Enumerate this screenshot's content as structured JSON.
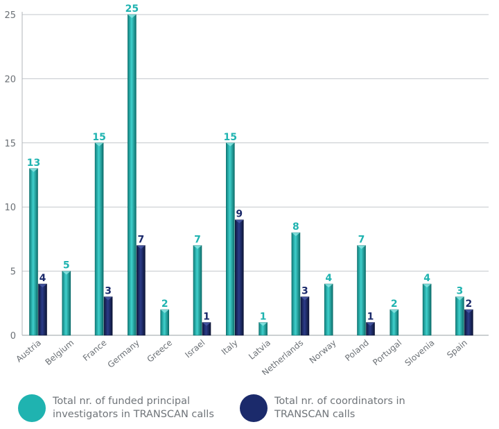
{
  "chart_data": {
    "type": "bar",
    "categories": [
      "Austria",
      "Belgium",
      "France",
      "Germany",
      "Greece",
      "Israel",
      "Italy",
      "Latvia",
      "Netherlands",
      "Norway",
      "Poland",
      "Portugal",
      "Slovenia",
      "Spain"
    ],
    "series": [
      {
        "name": "Total nr. of funded principal investigators in TRANSCAN calls",
        "color": "#1fb3b0",
        "values": [
          13,
          5,
          15,
          25,
          2,
          7,
          15,
          1,
          8,
          4,
          7,
          2,
          4,
          3
        ]
      },
      {
        "name": "Total nr. of coordinators in TRANSCAN calls",
        "color": "#1b2a6b",
        "values": [
          4,
          null,
          3,
          7,
          null,
          1,
          9,
          null,
          3,
          null,
          1,
          null,
          null,
          2
        ]
      }
    ],
    "ylim": [
      0,
      25
    ],
    "yticks": [
      0,
      5,
      10,
      15,
      20,
      25
    ],
    "grid": true,
    "legend_position": "bottom"
  }
}
